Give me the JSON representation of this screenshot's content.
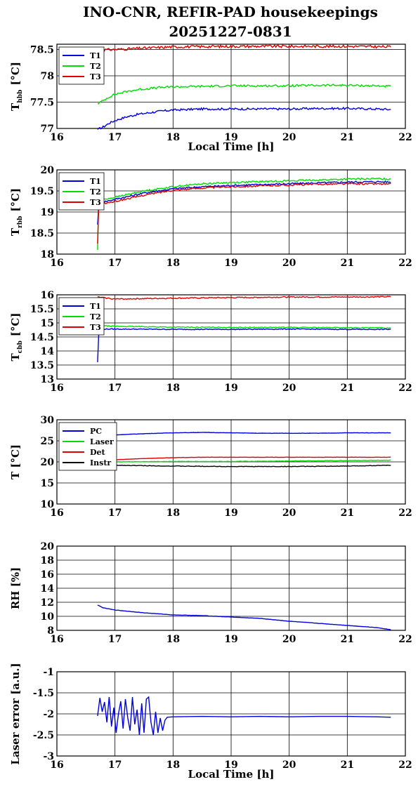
{
  "title_line1": "INO-CNR, REFIR-PAD housekeepings",
  "title_line2": "20251227-0831",
  "colors": {
    "blue": "#0000dd",
    "green": "#00dd00",
    "red": "#dd0000",
    "black": "#000000"
  },
  "chart_data": [
    {
      "type": "line",
      "ylabel_main": "T",
      "ylabel_sub": "hbb",
      "ylabel_unit": "[°C]",
      "xlabel": "Local Time [h]",
      "xlim": [
        16,
        22
      ],
      "ylim": [
        77,
        78.6
      ],
      "xticks": [
        "16",
        "17",
        "18",
        "19",
        "20",
        "21",
        "22"
      ],
      "yticks": [
        {
          "v": 77,
          "label": "77"
        },
        {
          "v": 77.5,
          "label": "77.5"
        },
        {
          "v": 78,
          "label": "78"
        },
        {
          "v": 78.5,
          "label": "78.5"
        }
      ],
      "grid": true,
      "legend": "top-left",
      "series": [
        {
          "name": "T1",
          "color": "blue",
          "x": [
            16.7,
            16.8,
            16.9,
            17.0,
            17.2,
            17.4,
            17.6,
            17.8,
            18.0,
            18.5,
            19.0,
            19.5,
            20.0,
            20.5,
            21.0,
            21.5,
            21.75
          ],
          "y": [
            76.98,
            77.03,
            77.1,
            77.15,
            77.22,
            77.27,
            77.3,
            77.33,
            77.35,
            77.37,
            77.37,
            77.37,
            77.37,
            77.38,
            77.38,
            77.37,
            77.36
          ],
          "noise": 0.02
        },
        {
          "name": "T2",
          "color": "green",
          "x": [
            16.7,
            16.8,
            16.9,
            17.0,
            17.2,
            17.4,
            17.6,
            17.8,
            18.0,
            18.5,
            19.0,
            19.5,
            20.0,
            20.5,
            21.0,
            21.5,
            21.75
          ],
          "y": [
            77.47,
            77.53,
            77.6,
            77.65,
            77.7,
            77.74,
            77.76,
            77.78,
            77.79,
            77.8,
            77.81,
            77.81,
            77.81,
            77.82,
            77.82,
            77.81,
            77.8
          ],
          "noise": 0.02
        },
        {
          "name": "T3",
          "color": "red",
          "x": [
            16.7,
            17.0,
            17.4,
            17.8,
            18.0,
            19.0,
            20.0,
            21.0,
            21.75
          ],
          "y": [
            78.49,
            78.5,
            78.52,
            78.54,
            78.55,
            78.56,
            78.56,
            78.56,
            78.55
          ],
          "noise": 0.025
        }
      ]
    },
    {
      "type": "line",
      "ylabel_main": "T",
      "ylabel_sub": "rbb",
      "ylabel_unit": "[°C]",
      "xlabel": "",
      "xlim": [
        16,
        22
      ],
      "ylim": [
        18,
        20
      ],
      "xticks": [
        "16",
        "17",
        "18",
        "19",
        "20",
        "21",
        "22"
      ],
      "yticks": [
        {
          "v": 18,
          "label": "18"
        },
        {
          "v": 18.5,
          "label": "18.5"
        },
        {
          "v": 19,
          "label": "19"
        },
        {
          "v": 19.5,
          "label": "19.5"
        },
        {
          "v": 20,
          "label": "20"
        }
      ],
      "grid": true,
      "legend": "top-left",
      "series": [
        {
          "name": "T1",
          "color": "blue",
          "x": [
            16.7,
            16.72,
            16.8,
            17.0,
            17.5,
            18.0,
            18.5,
            19.0,
            19.5,
            20.0,
            20.5,
            21.0,
            21.5,
            21.75
          ],
          "y": [
            18.7,
            19.2,
            19.24,
            19.3,
            19.45,
            19.55,
            19.6,
            19.63,
            19.65,
            19.67,
            19.69,
            19.71,
            19.72,
            19.71
          ],
          "noise": 0.02
        },
        {
          "name": "T2",
          "color": "green",
          "x": [
            16.7,
            16.72,
            16.8,
            17.0,
            17.5,
            18.0,
            18.5,
            19.0,
            19.5,
            20.0,
            20.5,
            21.0,
            21.5,
            21.75
          ],
          "y": [
            18.1,
            19.25,
            19.3,
            19.35,
            19.5,
            19.6,
            19.67,
            19.7,
            19.72,
            19.74,
            19.76,
            19.78,
            19.79,
            19.78
          ],
          "noise": 0.02
        },
        {
          "name": "T3",
          "color": "red",
          "x": [
            16.7,
            16.72,
            16.8,
            17.0,
            17.5,
            18.0,
            18.5,
            19.0,
            19.5,
            20.0,
            20.5,
            21.0,
            21.5,
            21.75
          ],
          "y": [
            18.25,
            19.15,
            19.2,
            19.25,
            19.4,
            19.52,
            19.57,
            19.6,
            19.62,
            19.64,
            19.66,
            19.67,
            19.67,
            19.66
          ],
          "noise": 0.02
        }
      ]
    },
    {
      "type": "line",
      "ylabel_main": "T",
      "ylabel_sub": "cbb",
      "ylabel_unit": "[°C]",
      "xlabel": "",
      "xlim": [
        16,
        22
      ],
      "ylim": [
        13,
        16
      ],
      "xticks": [
        "16",
        "17",
        "18",
        "19",
        "20",
        "21",
        "22"
      ],
      "yticks": [
        {
          "v": 13,
          "label": "13"
        },
        {
          "v": 13.5,
          "label": "13.5"
        },
        {
          "v": 14,
          "label": "14"
        },
        {
          "v": 14.5,
          "label": "14.5"
        },
        {
          "v": 15,
          "label": "15"
        },
        {
          "v": 15.5,
          "label": "15.5"
        },
        {
          "v": 16,
          "label": "16"
        }
      ],
      "grid": true,
      "legend": "top-left",
      "series": [
        {
          "name": "T1",
          "color": "blue",
          "x": [
            16.7,
            16.72,
            16.75,
            17.0,
            18.0,
            19.0,
            20.0,
            21.0,
            21.75
          ],
          "y": [
            13.6,
            14.6,
            14.78,
            14.78,
            14.77,
            14.77,
            14.78,
            14.77,
            14.77
          ],
          "noise": 0.015
        },
        {
          "name": "T2",
          "color": "green",
          "x": [
            16.7,
            16.75,
            17.0,
            18.0,
            19.0,
            20.0,
            21.0,
            21.75
          ],
          "y": [
            14.92,
            14.9,
            14.88,
            14.85,
            14.84,
            14.84,
            14.83,
            14.82
          ],
          "noise": 0.015
        },
        {
          "name": "T3",
          "color": "red",
          "x": [
            16.7,
            17.0,
            18.0,
            19.0,
            20.0,
            21.0,
            21.75
          ],
          "y": [
            15.92,
            15.85,
            15.88,
            15.9,
            15.92,
            15.92,
            15.93
          ],
          "noise": 0.02
        }
      ]
    },
    {
      "type": "line",
      "ylabel_main": "T [°C]",
      "ylabel_sub": "",
      "ylabel_unit": "",
      "xlabel": "",
      "xlim": [
        16,
        22
      ],
      "ylim": [
        10,
        30
      ],
      "xticks": [
        "16",
        "17",
        "18",
        "19",
        "20",
        "21",
        "22"
      ],
      "yticks": [
        {
          "v": 10,
          "label": "10"
        },
        {
          "v": 15,
          "label": "15"
        },
        {
          "v": 20,
          "label": "20"
        },
        {
          "v": 25,
          "label": "25"
        },
        {
          "v": 30,
          "label": "30"
        }
      ],
      "grid": true,
      "legend": "top-left",
      "series": [
        {
          "name": "PC",
          "color": "blue",
          "x": [
            16.7,
            17.0,
            17.5,
            18.0,
            18.5,
            19.0,
            19.5,
            20.0,
            20.5,
            21.0,
            21.5,
            21.75
          ],
          "y": [
            26.2,
            26.4,
            26.7,
            26.9,
            27.0,
            26.9,
            26.8,
            26.8,
            26.8,
            26.9,
            26.9,
            26.9
          ],
          "noise": 0.03
        },
        {
          "name": "Laser",
          "color": "green",
          "x": [
            16.7,
            17.0,
            18.0,
            19.0,
            20.0,
            21.0,
            21.75
          ],
          "y": [
            20.0,
            20.0,
            20.1,
            20.1,
            20.2,
            20.3,
            20.4
          ],
          "noise": 0.05
        },
        {
          "name": "Det",
          "color": "red",
          "x": [
            16.7,
            17.0,
            17.5,
            18.0,
            18.5,
            19.0,
            20.0,
            21.0,
            21.75
          ],
          "y": [
            20.3,
            20.5,
            20.8,
            21.0,
            21.1,
            21.1,
            21.1,
            21.1,
            21.1
          ],
          "noise": 0.03
        },
        {
          "name": "Instr",
          "color": "black",
          "x": [
            16.7,
            17.0,
            18.0,
            19.0,
            20.0,
            21.0,
            21.75
          ],
          "y": [
            19.3,
            19.2,
            19.0,
            18.9,
            18.9,
            19.0,
            19.2
          ],
          "noise": 0.06
        }
      ]
    },
    {
      "type": "line",
      "ylabel_main": "RH [%]",
      "ylabel_sub": "",
      "ylabel_unit": "",
      "xlabel": "",
      "xlim": [
        16,
        22
      ],
      "ylim": [
        8,
        20
      ],
      "xticks": [
        "16",
        "17",
        "18",
        "19",
        "20",
        "21",
        "22"
      ],
      "yticks": [
        {
          "v": 8,
          "label": "8"
        },
        {
          "v": 10,
          "label": "10"
        },
        {
          "v": 12,
          "label": "12"
        },
        {
          "v": 14,
          "label": "14"
        },
        {
          "v": 16,
          "label": "16"
        },
        {
          "v": 18,
          "label": "18"
        },
        {
          "v": 20,
          "label": "20"
        }
      ],
      "grid": true,
      "legend": "",
      "series": [
        {
          "name": "",
          "color": "blue",
          "x": [
            16.7,
            16.8,
            17.0,
            17.5,
            18.0,
            18.5,
            19.0,
            19.5,
            20.0,
            20.5,
            21.0,
            21.5,
            21.75
          ],
          "y": [
            11.6,
            11.2,
            10.9,
            10.5,
            10.2,
            10.1,
            9.9,
            9.7,
            9.3,
            9.0,
            8.7,
            8.4,
            8.1
          ],
          "noise": 0.02
        }
      ]
    },
    {
      "type": "line",
      "ylabel_main": "Laser error [a.u.]",
      "ylabel_sub": "",
      "ylabel_unit": "",
      "xlabel": "Local Time [h]",
      "xlim": [
        16,
        22
      ],
      "ylim": [
        -3,
        -1
      ],
      "xticks": [
        "16",
        "17",
        "18",
        "19",
        "20",
        "21",
        "22"
      ],
      "yticks": [
        {
          "v": -3,
          "label": "-3"
        },
        {
          "v": -2.5,
          "label": "-2.5"
        },
        {
          "v": -2,
          "label": "-2"
        },
        {
          "v": -1.5,
          "label": "-1.5"
        },
        {
          "v": -1,
          "label": "-1"
        }
      ],
      "grid": true,
      "legend": "",
      "series": [
        {
          "name": "",
          "color": "blue",
          "x": [
            16.7,
            16.74,
            16.78,
            16.82,
            16.86,
            16.9,
            16.94,
            16.98,
            17.02,
            17.06,
            17.1,
            17.14,
            17.18,
            17.22,
            17.26,
            17.3,
            17.34,
            17.38,
            17.42,
            17.46,
            17.5,
            17.54,
            17.58,
            17.62,
            17.66,
            17.7,
            17.74,
            17.78,
            17.82,
            17.86,
            17.9,
            18.0,
            18.5,
            19.0,
            19.5,
            20.0,
            20.5,
            21.0,
            21.5,
            21.75
          ],
          "y": [
            -2.05,
            -1.62,
            -1.95,
            -1.72,
            -2.2,
            -1.6,
            -2.3,
            -1.85,
            -2.45,
            -2.0,
            -1.7,
            -2.35,
            -1.65,
            -2.1,
            -2.4,
            -1.6,
            -2.25,
            -1.9,
            -2.5,
            -1.75,
            -2.45,
            -1.65,
            -1.6,
            -2.2,
            -2.5,
            -1.95,
            -2.45,
            -2.1,
            -2.4,
            -2.15,
            -2.08,
            -2.07,
            -2.06,
            -2.07,
            -2.06,
            -2.07,
            -2.06,
            -2.06,
            -2.07,
            -2.08
          ],
          "noise": 0.01
        }
      ]
    }
  ]
}
